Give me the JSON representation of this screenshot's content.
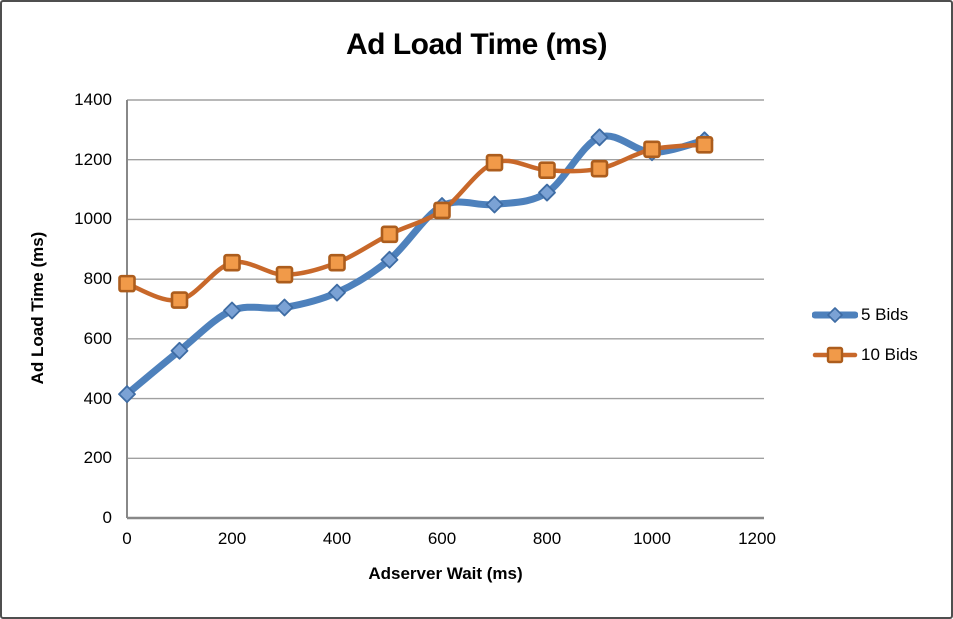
{
  "title": "Ad Load Time (ms)",
  "chart_data": {
    "type": "line",
    "title": "Ad Load Time (ms)",
    "xlabel": "Adserver Wait (ms)",
    "ylabel": "Ad Load Time (ms)",
    "xlim": [
      0,
      1200
    ],
    "ylim": [
      0,
      1400
    ],
    "x_ticks": [
      0,
      200,
      400,
      600,
      800,
      1000,
      1200
    ],
    "y_ticks": [
      0,
      200,
      400,
      600,
      800,
      1000,
      1200,
      1400
    ],
    "grid": "horizontal",
    "legend_position": "right",
    "smoothed_lines": true,
    "x": [
      0,
      100,
      200,
      300,
      400,
      500,
      600,
      700,
      800,
      900,
      1000,
      1100
    ],
    "series": [
      {
        "name": "5 Bids",
        "marker": "diamond",
        "line_color": "#4E81BC",
        "marker_fill": "#7BA2D5",
        "marker_stroke": "#3E6CA4",
        "line_width": 7,
        "values": [
          415,
          560,
          695,
          705,
          755,
          865,
          1045,
          1050,
          1090,
          1275,
          1225,
          1265
        ]
      },
      {
        "name": "10 Bids",
        "marker": "square",
        "line_color": "#C8682A",
        "marker_fill": "#F19A49",
        "marker_stroke": "#AC5D1D",
        "line_width": 4.5,
        "values": [
          785,
          730,
          855,
          815,
          855,
          950,
          1030,
          1190,
          1165,
          1170,
          1235,
          1250
        ]
      }
    ],
    "colors": {
      "gridline": "#A0A0A0",
      "axis_line": "#888888",
      "text": "#000000",
      "background": "#FFFFFF"
    }
  }
}
